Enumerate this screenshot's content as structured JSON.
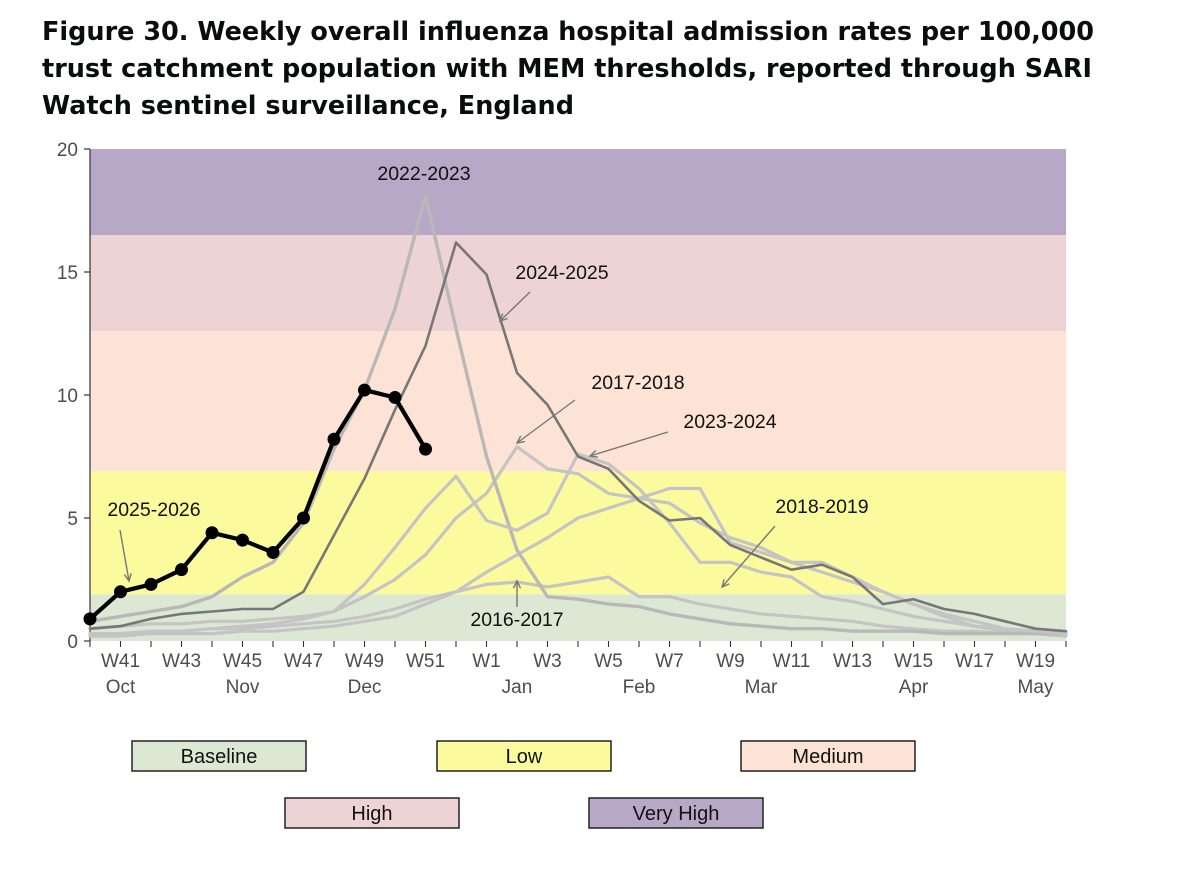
{
  "title": "Figure 30. Weekly overall influenza hospital admission rates per 100,000 trust catchment population with MEM thresholds, reported through SARI Watch sentinel surveillance, England",
  "colors": {
    "baseline": "#dce8d3",
    "low": "#fbfb9d",
    "medium": "#fce3d6",
    "high": "#eed3d5",
    "very_high": "#b8a8c7",
    "current": "#000000",
    "gray_light": "#c4c4c4",
    "gray_mid": "#b5b5b5",
    "gray_dark": "#7a7a7a",
    "gray_darker": "#6e6e6e"
  },
  "chart_data": {
    "type": "line",
    "title": "Figure 30. Weekly overall influenza hospital admission rates per 100,000 trust catchment population with MEM thresholds, reported through SARI Watch sentinel surveillance, England",
    "xlabel": "",
    "ylabel": "",
    "ylim": [
      0,
      20
    ],
    "yticks": [
      0,
      5,
      10,
      15,
      20
    ],
    "weeks": [
      "W40",
      "W41",
      "W42",
      "W43",
      "W44",
      "W45",
      "W46",
      "W47",
      "W48",
      "W49",
      "W50",
      "W51",
      "W52",
      "W1",
      "W2",
      "W3",
      "W4",
      "W5",
      "W6",
      "W7",
      "W8",
      "W9",
      "W10",
      "W11",
      "W12",
      "W13",
      "W14",
      "W15",
      "W16",
      "W17",
      "W18",
      "W19",
      "W20"
    ],
    "tick_labels": [
      "W41",
      "W43",
      "W45",
      "W47",
      "W49",
      "W51",
      "W1",
      "W3",
      "W5",
      "W7",
      "W9",
      "W11",
      "W13",
      "W15",
      "W17",
      "W19"
    ],
    "month_labels": [
      {
        "week": "W41",
        "label": "Oct"
      },
      {
        "week": "W45",
        "label": "Nov"
      },
      {
        "week": "W49",
        "label": "Dec"
      },
      {
        "week": "W2",
        "label": "Jan"
      },
      {
        "week": "W6",
        "label": "Feb"
      },
      {
        "week": "W10",
        "label": "Mar"
      },
      {
        "week": "W15",
        "label": "Apr"
      },
      {
        "week": "W19",
        "label": "May"
      }
    ],
    "thresholds": [
      {
        "level": "Baseline",
        "from": 0,
        "to": 1.9,
        "color": "#dce8d3"
      },
      {
        "level": "Low",
        "from": 1.9,
        "to": 6.9,
        "color": "#fbfb9d"
      },
      {
        "level": "Medium",
        "from": 6.9,
        "to": 12.6,
        "color": "#fce3d6"
      },
      {
        "level": "High",
        "from": 12.6,
        "to": 16.5,
        "color": "#eed3d5"
      },
      {
        "level": "Very High",
        "from": 16.5,
        "to": 20,
        "color": "#b8a8c7"
      }
    ],
    "series": [
      {
        "name": "2016-2017",
        "color": "#c4c4c4",
        "width": 3.2,
        "values": [
          0.2,
          0.3,
          0.3,
          0.4,
          0.5,
          0.5,
          0.6,
          0.7,
          0.8,
          1.0,
          1.3,
          1.7,
          2.0,
          2.3,
          2.4,
          2.2,
          2.4,
          2.6,
          1.8,
          1.8,
          1.5,
          1.3,
          1.1,
          1.0,
          0.9,
          0.8,
          0.6,
          0.5,
          0.4,
          0.4,
          0.3,
          0.3,
          0.2
        ]
      },
      {
        "name": "2017-2018",
        "color": "#c4c4c4",
        "width": 3.2,
        "values": [
          0.3,
          0.3,
          0.4,
          0.4,
          0.5,
          0.6,
          0.7,
          0.9,
          1.2,
          1.8,
          2.5,
          3.5,
          5.0,
          6.0,
          7.9,
          7.0,
          6.8,
          6.0,
          5.8,
          5.6,
          4.8,
          4.2,
          3.8,
          3.2,
          2.8,
          2.4,
          2.0,
          1.5,
          1.1,
          0.8,
          0.5,
          0.4,
          0.3
        ]
      },
      {
        "name": "2018-2019",
        "color": "#c4c4c4",
        "width": 3.2,
        "values": [
          0.2,
          0.2,
          0.3,
          0.3,
          0.3,
          0.4,
          0.4,
          0.5,
          0.6,
          0.8,
          1.0,
          1.5,
          2.0,
          2.8,
          3.5,
          4.2,
          5.0,
          5.4,
          5.8,
          6.2,
          6.2,
          4.0,
          3.6,
          3.2,
          3.2,
          2.6,
          2.0,
          1.5,
          1.0,
          0.6,
          0.4,
          0.3,
          0.3
        ]
      },
      {
        "name": "2022-2023",
        "color": "#b8b8b8",
        "width": 3.4,
        "values": [
          0.8,
          1.0,
          1.2,
          1.4,
          1.8,
          2.6,
          3.2,
          4.8,
          7.8,
          10.2,
          13.5,
          18.1,
          12.7,
          7.5,
          3.7,
          1.8,
          1.7,
          1.5,
          1.4,
          1.1,
          0.9,
          0.7,
          0.6,
          0.5,
          0.5,
          0.4,
          0.4,
          0.4,
          0.3,
          0.3,
          0.3,
          0.3,
          0.3
        ]
      },
      {
        "name": "2023-2024",
        "color": "#c4c4c4",
        "width": 3.2,
        "values": [
          0.5,
          0.6,
          0.7,
          0.7,
          0.8,
          0.8,
          0.9,
          1.0,
          1.2,
          2.3,
          3.8,
          5.4,
          6.7,
          4.9,
          4.5,
          5.2,
          7.6,
          7.2,
          6.2,
          4.8,
          3.2,
          3.2,
          2.8,
          2.6,
          1.8,
          1.6,
          1.3,
          1.0,
          0.8,
          0.6,
          0.5,
          0.4,
          0.3
        ]
      },
      {
        "name": "2024-2025",
        "color": "#777777",
        "width": 2.6,
        "values": [
          0.5,
          0.6,
          0.9,
          1.1,
          1.2,
          1.3,
          1.3,
          2.0,
          4.3,
          6.6,
          9.4,
          12.0,
          16.2,
          14.9,
          10.9,
          9.6,
          7.5,
          7.0,
          5.7,
          4.9,
          5.0,
          3.9,
          3.4,
          2.9,
          3.1,
          2.6,
          1.5,
          1.7,
          1.3,
          1.1,
          0.8,
          0.5,
          0.4
        ]
      },
      {
        "name": "2025-2026",
        "color": "#000000",
        "width": 4.2,
        "markers": true,
        "values": [
          0.9,
          2.0,
          2.3,
          2.9,
          4.4,
          4.1,
          3.6,
          5.0,
          8.2,
          10.2,
          9.9,
          7.8
        ]
      }
    ],
    "annotations": [
      {
        "label": "2022-2023",
        "series": "2022-2023"
      },
      {
        "label": "2024-2025",
        "series": "2024-2025"
      },
      {
        "label": "2017-2018",
        "series": "2017-2018"
      },
      {
        "label": "2023-2024",
        "series": "2023-2024"
      },
      {
        "label": "2018-2019",
        "series": "2018-2019"
      },
      {
        "label": "2025-2026",
        "series": "2025-2026"
      },
      {
        "label": "2016-2017",
        "series": "2016-2017"
      }
    ],
    "legend": [
      "Baseline",
      "Low",
      "Medium",
      "High",
      "Very High"
    ],
    "legend_position": "bottom"
  }
}
